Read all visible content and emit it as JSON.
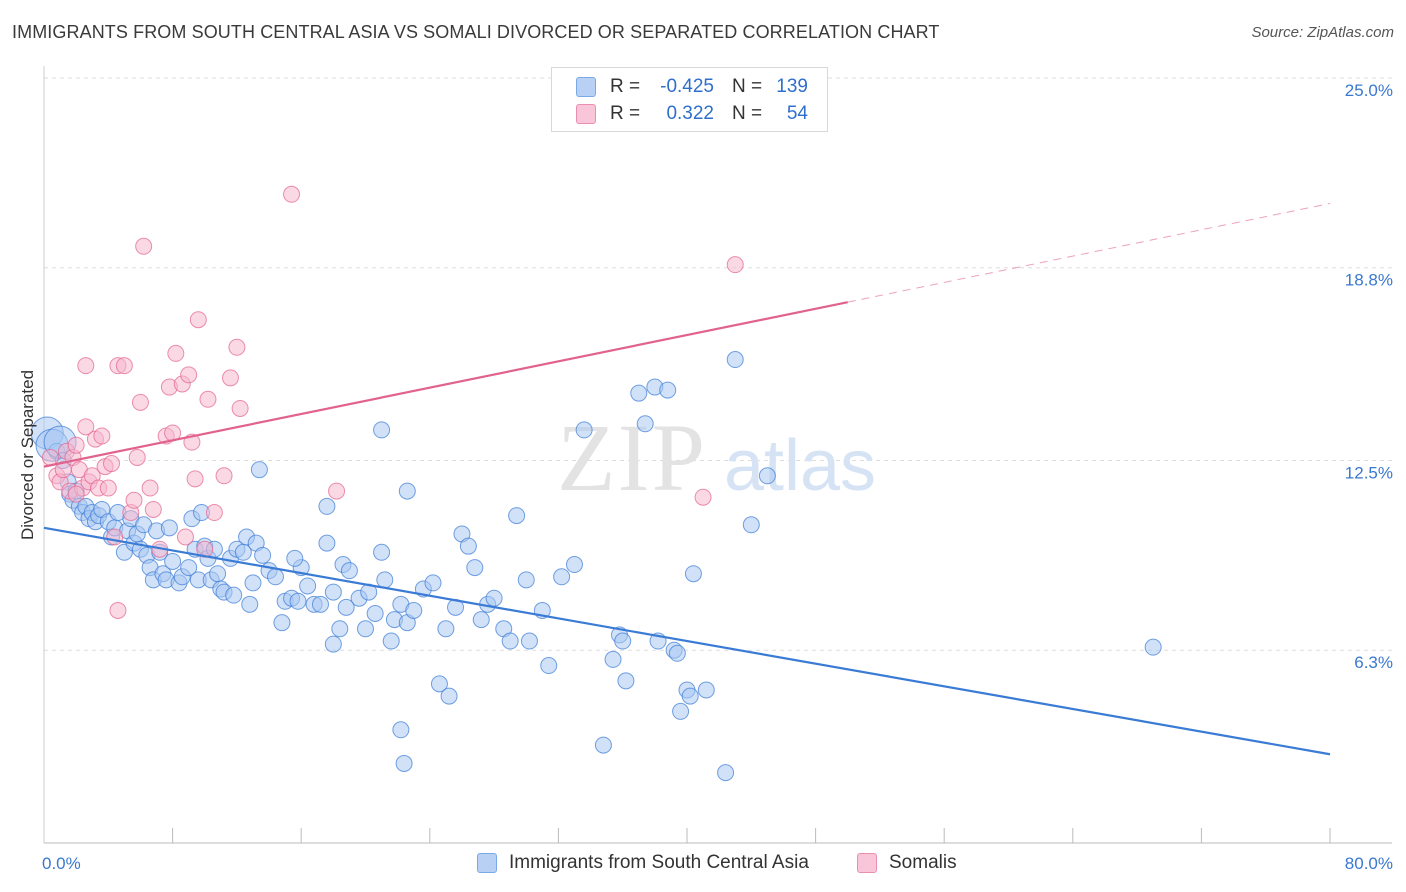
{
  "title": "IMMIGRANTS FROM SOUTH CENTRAL ASIA VS SOMALI DIVORCED OR SEPARATED CORRELATION CHART",
  "source": "Source: ZipAtlas.com",
  "watermark": {
    "zip": "ZIP",
    "atlas": "atlas"
  },
  "legend": {
    "r_label": "R =",
    "n_label": "N =",
    "rows": [
      {
        "r": "-0.425",
        "n": "139",
        "color": "#7aa9e8",
        "fill": "#b8d0f4"
      },
      {
        "r": "0.322",
        "n": "54",
        "color": "#eb8fb0",
        "fill": "#f8c6d8"
      }
    ]
  },
  "chart_data": {
    "type": "scatter",
    "xlabel": "",
    "ylabel": "Divorced or Separated",
    "xlim": [
      0,
      80
    ],
    "ylim": [
      0,
      25
    ],
    "x_tick_labels": [
      {
        "value": 0,
        "label": "0.0%"
      },
      {
        "value": 80,
        "label": "80.0%"
      }
    ],
    "y_tick_labels": [
      {
        "value": 6.3,
        "label": "6.3%"
      },
      {
        "value": 12.5,
        "label": "12.5%"
      },
      {
        "value": 18.8,
        "label": "18.8%"
      },
      {
        "value": 25.0,
        "label": "25.0%"
      }
    ],
    "x_minor_ticks": [
      8,
      16,
      24,
      32,
      40,
      48,
      56,
      64,
      72,
      80
    ],
    "grid": true,
    "legend_position": "top-center",
    "series": [
      {
        "name": "Immigrants from South Central Asia",
        "color": "#3a7bd5",
        "point_fill": "#a9c8f2",
        "trend": {
          "x0": 0,
          "y0": 10.3,
          "x1": 80,
          "y1": 2.9,
          "solid_until": 80
        },
        "points": [
          [
            0.2,
            13.4
          ],
          [
            0.5,
            13.0
          ],
          [
            0.8,
            12.8
          ],
          [
            1.0,
            13.1
          ],
          [
            1.2,
            12.5
          ],
          [
            1.5,
            11.8
          ],
          [
            1.6,
            11.4
          ],
          [
            1.8,
            11.2
          ],
          [
            2.0,
            11.5
          ],
          [
            2.2,
            11.0
          ],
          [
            2.4,
            10.8
          ],
          [
            2.6,
            11.0
          ],
          [
            2.8,
            10.6
          ],
          [
            3.0,
            10.8
          ],
          [
            3.2,
            10.5
          ],
          [
            3.4,
            10.7
          ],
          [
            3.6,
            10.9
          ],
          [
            4.0,
            10.5
          ],
          [
            4.2,
            10.0
          ],
          [
            4.4,
            10.3
          ],
          [
            4.6,
            10.8
          ],
          [
            5.0,
            9.5
          ],
          [
            5.2,
            10.2
          ],
          [
            5.4,
            10.6
          ],
          [
            5.6,
            9.8
          ],
          [
            5.8,
            10.1
          ],
          [
            6.0,
            9.6
          ],
          [
            6.2,
            10.4
          ],
          [
            6.4,
            9.4
          ],
          [
            6.6,
            9.0
          ],
          [
            6.8,
            8.6
          ],
          [
            7.0,
            10.2
          ],
          [
            7.2,
            9.5
          ],
          [
            7.4,
            8.8
          ],
          [
            7.6,
            8.6
          ],
          [
            7.8,
            10.3
          ],
          [
            8.0,
            9.2
          ],
          [
            8.4,
            8.5
          ],
          [
            8.6,
            8.7
          ],
          [
            9.0,
            9.0
          ],
          [
            9.2,
            10.6
          ],
          [
            9.4,
            9.6
          ],
          [
            9.6,
            8.6
          ],
          [
            9.8,
            10.8
          ],
          [
            10.0,
            9.7
          ],
          [
            10.2,
            9.3
          ],
          [
            10.4,
            8.6
          ],
          [
            10.6,
            9.6
          ],
          [
            10.8,
            8.8
          ],
          [
            11.0,
            8.3
          ],
          [
            11.2,
            8.2
          ],
          [
            11.6,
            9.3
          ],
          [
            11.8,
            8.1
          ],
          [
            12.0,
            9.6
          ],
          [
            12.4,
            9.5
          ],
          [
            12.6,
            10.0
          ],
          [
            12.8,
            7.8
          ],
          [
            13.0,
            8.5
          ],
          [
            13.2,
            9.8
          ],
          [
            13.6,
            9.4
          ],
          [
            14.0,
            8.9
          ],
          [
            14.4,
            8.7
          ],
          [
            14.8,
            7.2
          ],
          [
            15.0,
            7.9
          ],
          [
            15.4,
            8.0
          ],
          [
            15.8,
            7.9
          ],
          [
            16.0,
            9.0
          ],
          [
            16.4,
            8.4
          ],
          [
            16.8,
            7.8
          ],
          [
            17.2,
            7.8
          ],
          [
            17.6,
            9.8
          ],
          [
            18.0,
            8.2
          ],
          [
            18.4,
            7.0
          ],
          [
            18.6,
            9.1
          ],
          [
            19.0,
            8.9
          ],
          [
            19.6,
            8.0
          ],
          [
            20.0,
            7.0
          ],
          [
            20.2,
            8.2
          ],
          [
            20.6,
            7.5
          ],
          [
            21.0,
            9.5
          ],
          [
            21.2,
            8.6
          ],
          [
            21.6,
            6.6
          ],
          [
            21.8,
            7.3
          ],
          [
            22.2,
            7.8
          ],
          [
            22.6,
            7.2
          ],
          [
            23.0,
            7.6
          ],
          [
            23.6,
            8.3
          ],
          [
            24.2,
            8.5
          ],
          [
            24.6,
            5.2
          ],
          [
            25.0,
            7.0
          ],
          [
            25.2,
            4.8
          ],
          [
            25.6,
            7.7
          ],
          [
            26.0,
            10.1
          ],
          [
            26.4,
            9.7
          ],
          [
            26.8,
            9.0
          ],
          [
            27.2,
            7.3
          ],
          [
            27.6,
            7.8
          ],
          [
            28.0,
            8.0
          ],
          [
            28.6,
            7.0
          ],
          [
            29.0,
            6.6
          ],
          [
            29.4,
            10.7
          ],
          [
            30.0,
            8.6
          ],
          [
            30.2,
            6.6
          ],
          [
            31.0,
            7.6
          ],
          [
            31.4,
            5.8
          ],
          [
            32.2,
            8.7
          ],
          [
            33.6,
            13.5
          ],
          [
            34.8,
            3.2
          ],
          [
            35.4,
            6.0
          ],
          [
            35.8,
            6.8
          ],
          [
            36.2,
            5.3
          ],
          [
            37.0,
            14.7
          ],
          [
            37.4,
            13.7
          ],
          [
            38.0,
            14.9
          ],
          [
            38.2,
            6.6
          ],
          [
            38.8,
            14.8
          ],
          [
            39.2,
            6.3
          ],
          [
            39.4,
            6.2
          ],
          [
            39.6,
            4.3
          ],
          [
            40.0,
            5.0
          ],
          [
            40.4,
            8.8
          ],
          [
            41.2,
            5.0
          ],
          [
            42.4,
            2.3
          ],
          [
            43.0,
            15.8
          ],
          [
            44.0,
            10.4
          ],
          [
            45.0,
            12.0
          ],
          [
            22.2,
            3.7
          ],
          [
            22.4,
            2.6
          ],
          [
            33.0,
            9.1
          ],
          [
            21.0,
            13.5
          ],
          [
            22.6,
            11.5
          ],
          [
            17.6,
            11.0
          ],
          [
            18.8,
            7.7
          ],
          [
            18.0,
            6.5
          ],
          [
            13.4,
            12.2
          ],
          [
            15.6,
            9.3
          ],
          [
            36.0,
            6.6
          ],
          [
            40.2,
            4.8
          ],
          [
            69.0,
            6.4
          ]
        ]
      },
      {
        "name": "Somalis",
        "color": "#e2628e",
        "point_fill": "#f6b8cd",
        "trend": {
          "x0": 0,
          "y0": 12.3,
          "x1": 80,
          "y1": 20.9,
          "solid_until": 50
        },
        "points": [
          [
            0.4,
            12.6
          ],
          [
            0.8,
            12.0
          ],
          [
            1.0,
            11.8
          ],
          [
            1.2,
            12.2
          ],
          [
            1.4,
            12.8
          ],
          [
            1.6,
            11.5
          ],
          [
            1.8,
            12.6
          ],
          [
            2.0,
            13.0
          ],
          [
            2.2,
            12.2
          ],
          [
            2.4,
            11.6
          ],
          [
            2.6,
            13.6
          ],
          [
            2.8,
            11.8
          ],
          [
            3.0,
            12.0
          ],
          [
            3.2,
            13.2
          ],
          [
            3.4,
            11.6
          ],
          [
            3.6,
            13.3
          ],
          [
            3.8,
            12.3
          ],
          [
            4.0,
            11.6
          ],
          [
            4.2,
            12.4
          ],
          [
            4.4,
            10.0
          ],
          [
            4.6,
            15.6
          ],
          [
            5.0,
            15.6
          ],
          [
            5.4,
            10.8
          ],
          [
            5.6,
            11.2
          ],
          [
            5.8,
            12.6
          ],
          [
            6.0,
            14.4
          ],
          [
            6.2,
            19.5
          ],
          [
            6.6,
            11.6
          ],
          [
            6.8,
            10.9
          ],
          [
            7.2,
            9.6
          ],
          [
            7.6,
            13.3
          ],
          [
            7.8,
            14.9
          ],
          [
            8.0,
            13.4
          ],
          [
            8.2,
            16.0
          ],
          [
            8.6,
            15.0
          ],
          [
            8.8,
            10.0
          ],
          [
            9.0,
            15.3
          ],
          [
            9.2,
            13.1
          ],
          [
            9.4,
            11.9
          ],
          [
            9.6,
            17.1
          ],
          [
            10.0,
            9.6
          ],
          [
            10.2,
            14.5
          ],
          [
            10.6,
            10.8
          ],
          [
            11.2,
            12.0
          ],
          [
            11.6,
            15.2
          ],
          [
            12.0,
            16.2
          ],
          [
            12.2,
            14.2
          ],
          [
            2.0,
            11.4
          ],
          [
            15.4,
            21.2
          ],
          [
            18.2,
            11.5
          ],
          [
            41.0,
            11.3
          ],
          [
            43.0,
            18.9
          ],
          [
            4.6,
            7.6
          ],
          [
            2.6,
            15.6
          ]
        ]
      }
    ]
  }
}
